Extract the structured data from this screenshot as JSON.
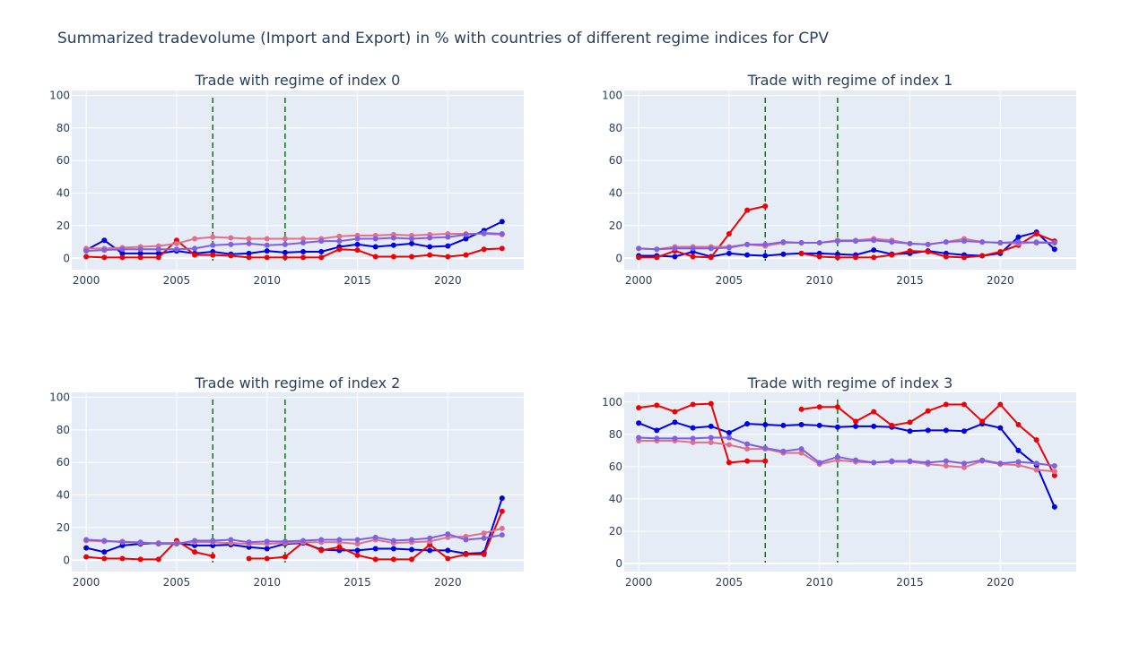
{
  "title": "Summarized tradevolume (Import and Export) in % with countries of different regime indices for CPV",
  "colors": {
    "plot_bg": "#e5ecf6",
    "grid": "#ffffff",
    "series": [
      "#0000e6",
      "#f00000",
      "#e0708c",
      "#8060e0"
    ],
    "vline": "#008000"
  },
  "chart_data": [
    {
      "type": "line",
      "title": "Trade with regime of index 0",
      "x": [
        2000,
        2001,
        2002,
        2003,
        2004,
        2005,
        2006,
        2007,
        2008,
        2009,
        2010,
        2011,
        2012,
        2013,
        2014,
        2015,
        2016,
        2017,
        2018,
        2019,
        2020,
        2021,
        2022,
        2023
      ],
      "xticks": [
        2000,
        2005,
        2010,
        2015,
        2020
      ],
      "yticks": [
        0,
        20,
        40,
        60,
        80,
        100
      ],
      "xlim": [
        1999.2,
        2024.2
      ],
      "ylim": [
        -7,
        103
      ],
      "vlines": [
        2007,
        2011
      ],
      "series": [
        {
          "values": [
            5,
            11,
            3,
            3,
            3,
            4.5,
            3,
            4,
            2.5,
            3,
            4.5,
            3.5,
            4,
            4,
            7,
            8.5,
            7,
            8,
            9,
            7,
            7.5,
            12,
            17,
            22.5
          ]
        },
        {
          "values": [
            1,
            0.5,
            0.5,
            0.5,
            0.5,
            11,
            2,
            2,
            1.5,
            0.5,
            0.5,
            0.5,
            0.5,
            0.5,
            5.5,
            5,
            1,
            1,
            1,
            2,
            1,
            2,
            5.5,
            6
          ]
        },
        {
          "values": [
            6,
            6,
            6.5,
            7,
            7.5,
            9,
            12,
            13,
            12.5,
            12,
            12,
            12,
            12,
            12,
            13.5,
            14,
            14,
            14.5,
            14,
            14.5,
            15,
            15,
            15,
            14.5
          ]
        },
        {
          "values": [
            4.5,
            5,
            5.5,
            5.5,
            5.5,
            5.5,
            6,
            8,
            8.5,
            9,
            8,
            8.5,
            9.5,
            10.5,
            10.5,
            12,
            12,
            12.5,
            12,
            12.5,
            13,
            14.5,
            15.5,
            15
          ]
        }
      ]
    },
    {
      "type": "line",
      "title": "Trade with regime of index 1",
      "x": [
        2000,
        2001,
        2002,
        2003,
        2004,
        2005,
        2006,
        2007,
        2008,
        2009,
        2010,
        2011,
        2012,
        2013,
        2014,
        2015,
        2016,
        2017,
        2018,
        2019,
        2020,
        2021,
        2022,
        2023
      ],
      "xticks": [
        2000,
        2005,
        2010,
        2015,
        2020
      ],
      "yticks": [
        0,
        20,
        40,
        60,
        80,
        100
      ],
      "xlim": [
        1999.2,
        2024.2
      ],
      "ylim": [
        -7,
        103
      ],
      "vlines": [
        2007,
        2011
      ],
      "series": [
        {
          "values": [
            1.5,
            1.5,
            1,
            4,
            1,
            3,
            2,
            1.5,
            2.5,
            3,
            3,
            2.5,
            2,
            5,
            2.5,
            3,
            4.5,
            3,
            2,
            1.5,
            3,
            13,
            16,
            5.5
          ]
        },
        {
          "values": [
            0.5,
            0.5,
            4.5,
            1,
            0.5,
            15,
            29.5,
            32,
            null,
            3,
            1,
            0.5,
            0.5,
            0.5,
            2,
            4.5,
            4,
            1,
            0.5,
            1.5,
            4,
            8,
            15,
            10.5
          ]
        },
        {
          "values": [
            6,
            5.5,
            7,
            7,
            7,
            7,
            8.5,
            7.5,
            9.5,
            9.5,
            9.5,
            11,
            11,
            12,
            11,
            9,
            8.5,
            10,
            12,
            10,
            9.5,
            9,
            10,
            9.5
          ]
        },
        {
          "values": [
            6,
            5.5,
            6,
            6,
            6,
            6.5,
            8.5,
            8.5,
            10,
            9.5,
            9.5,
            10.5,
            10.5,
            11,
            10,
            9,
            8.5,
            10,
            10.5,
            10,
            9.5,
            10,
            9.5,
            9.5
          ]
        }
      ]
    },
    {
      "type": "line",
      "title": "Trade with regime of index 2",
      "x": [
        2000,
        2001,
        2002,
        2003,
        2004,
        2005,
        2006,
        2007,
        2008,
        2009,
        2010,
        2011,
        2012,
        2013,
        2014,
        2015,
        2016,
        2017,
        2018,
        2019,
        2020,
        2021,
        2022,
        2023
      ],
      "xticks": [
        2000,
        2005,
        2010,
        2015,
        2020
      ],
      "yticks": [
        0,
        20,
        40,
        60,
        80,
        100
      ],
      "xlim": [
        1999.2,
        2024.2
      ],
      "ylim": [
        -7,
        103
      ],
      "vlines": [
        2007,
        2011
      ],
      "series": [
        {
          "values": [
            7.5,
            5,
            9,
            10,
            10.5,
            10.5,
            9,
            9,
            9.5,
            8,
            7,
            10,
            10.5,
            6.5,
            6,
            6,
            7,
            7,
            6.5,
            6,
            6,
            4,
            4.5,
            38
          ]
        },
        {
          "values": [
            2,
            1,
            1,
            0.5,
            0.5,
            12,
            5,
            2.5,
            null,
            1,
            1,
            2,
            11,
            6,
            8,
            3,
            0.5,
            0.5,
            0.5,
            9.5,
            1,
            3.5,
            3.5,
            30
          ]
        },
        {
          "values": [
            12,
            11.5,
            11.5,
            10.5,
            10.5,
            10.5,
            11,
            11,
            10.5,
            10,
            10,
            10.5,
            11,
            11,
            11,
            10,
            12.5,
            10.5,
            11,
            11.5,
            14,
            14.5,
            16.5,
            19.5
          ]
        },
        {
          "values": [
            12.5,
            12,
            11,
            11,
            10,
            10,
            12,
            12,
            12.5,
            11,
            11.5,
            11.5,
            12,
            12.5,
            12.5,
            12.5,
            14,
            12,
            12.5,
            13.5,
            16,
            12.5,
            13.5,
            15.5
          ]
        }
      ]
    },
    {
      "type": "line",
      "title": "Trade with regime of index 3",
      "x": [
        2000,
        2001,
        2002,
        2003,
        2004,
        2005,
        2006,
        2007,
        2008,
        2009,
        2010,
        2011,
        2012,
        2013,
        2014,
        2015,
        2016,
        2017,
        2018,
        2019,
        2020,
        2021,
        2022,
        2023
      ],
      "xticks": [
        2000,
        2005,
        2010,
        2015,
        2020
      ],
      "yticks": [
        0,
        20,
        40,
        60,
        80,
        100
      ],
      "xlim": [
        1999.2,
        2024.2
      ],
      "ylim": [
        -5,
        106
      ],
      "vlines": [
        2007,
        2011
      ],
      "series": [
        {
          "values": [
            87,
            82.5,
            87.5,
            84,
            85,
            81,
            86.5,
            86,
            85.5,
            86,
            85.5,
            84.5,
            85,
            85,
            84.5,
            82,
            82.5,
            82.5,
            82,
            86.5,
            84,
            70,
            61,
            35
          ]
        },
        {
          "values": [
            96.5,
            98,
            94,
            98.5,
            99,
            62.5,
            63.5,
            63.5,
            null,
            95.5,
            97,
            97,
            88,
            94,
            85.5,
            87.5,
            94.5,
            98.5,
            98.5,
            88,
            98.5,
            86,
            76.5,
            54.5
          ]
        },
        {
          "values": [
            76,
            76,
            76,
            75,
            75,
            73.5,
            71,
            71,
            68.5,
            68.5,
            61.5,
            64,
            63,
            62.5,
            63,
            63,
            61.5,
            60.5,
            59.5,
            63.5,
            61.5,
            61,
            58,
            57
          ]
        },
        {
          "values": [
            78,
            77.5,
            77.5,
            77.5,
            78,
            78,
            74,
            71.5,
            69.5,
            71,
            62.5,
            66,
            64,
            62.5,
            63.5,
            63.5,
            62.5,
            63.5,
            62,
            64,
            62,
            63,
            62,
            60.5
          ]
        }
      ]
    }
  ]
}
